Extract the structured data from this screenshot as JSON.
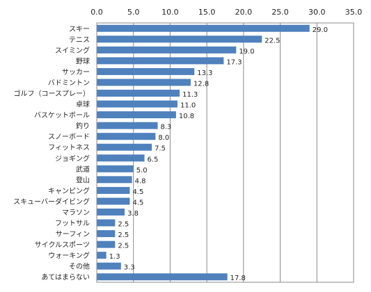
{
  "chart_data": {
    "type": "bar",
    "orientation": "horizontal",
    "xlim": [
      0,
      35
    ],
    "ticks": [
      "0.0",
      "5.0",
      "10.0",
      "15.0",
      "20.0",
      "25.0",
      "30.0",
      "35.0"
    ],
    "tick_values": [
      0,
      5,
      10,
      15,
      20,
      25,
      30,
      35
    ],
    "grid": true,
    "bar_color": "#4f81bd",
    "categories": [
      "スキー",
      "テニス",
      "スイミング",
      "野球",
      "サッカー",
      "バドミントン",
      "ゴルフ（コースプレー）",
      "卓球",
      "バスケットボール",
      "釣り",
      "スノーボード",
      "フィットネス",
      "ジョギング",
      "武道",
      "登山",
      "キャンピング",
      "スキューバーダイビング",
      "マラソン",
      "フットサル",
      "サーフィン",
      "サイクルスポーツ",
      "ウォーキング",
      "その他",
      "あてはまらない"
    ],
    "values": [
      29.0,
      22.5,
      19.0,
      17.3,
      13.3,
      12.8,
      11.3,
      11.0,
      10.8,
      8.3,
      8.0,
      7.5,
      6.5,
      5.0,
      4.8,
      4.5,
      4.5,
      3.8,
      2.5,
      2.5,
      2.5,
      1.3,
      3.3,
      17.8
    ],
    "value_labels": [
      "29.0",
      "22.5",
      "19.0",
      "17.3",
      "13.3",
      "12.8",
      "11.3",
      "11.0",
      "10.8",
      "8.3",
      "8.0",
      "7.5",
      "6.5",
      "5.0",
      "4.8",
      "4.5",
      "4.5",
      "3.8",
      "2.5",
      "2.5",
      "2.5",
      "1.3",
      "3.3",
      "17.8"
    ]
  }
}
